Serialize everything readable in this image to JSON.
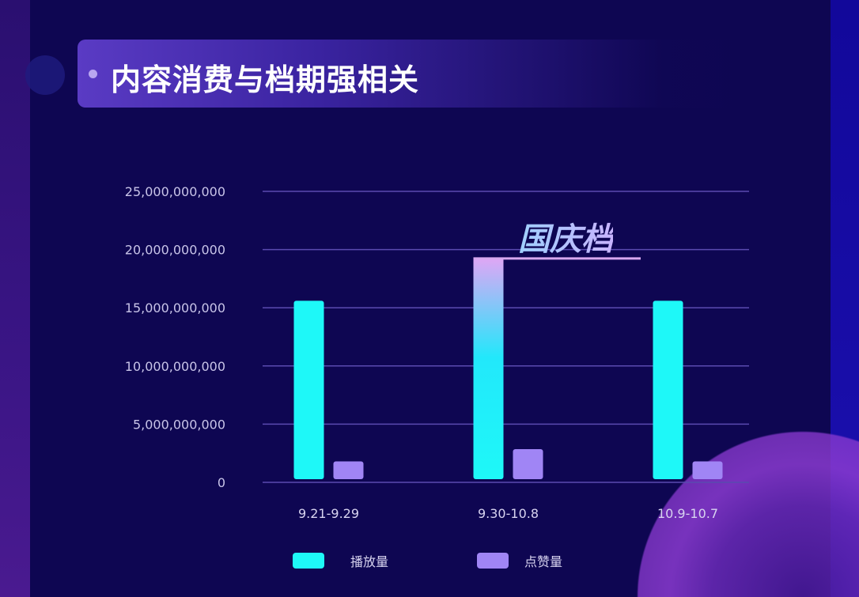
{
  "header": {
    "title": "内容消费与档期强相关"
  },
  "colors": {
    "play": "#1ef8f8",
    "like": "#a085f5",
    "gridline": "#5a4ab0",
    "annotation_line": "#d8a8f0"
  },
  "chart_data": {
    "type": "bar",
    "title": "",
    "categories": [
      "9.21-9.29",
      "9.30-10.8",
      "10.9-10.7"
    ],
    "series": [
      {
        "name": "播放量",
        "values": [
          15600000000,
          19300000000,
          15600000000
        ]
      },
      {
        "name": "点赞量",
        "values": [
          1800000000,
          2850000000,
          1800000000
        ]
      }
    ],
    "ylim": [
      0,
      25000000000
    ],
    "yticks": [
      "0",
      "5,000,000,000",
      "10,000,000,000",
      "15,000,000,000",
      "20,000,000,000",
      "25,000,000,000"
    ],
    "grid": true,
    "legend_position": "bottom",
    "annotation": {
      "text": "国庆档",
      "category": "9.30-10.8"
    }
  }
}
